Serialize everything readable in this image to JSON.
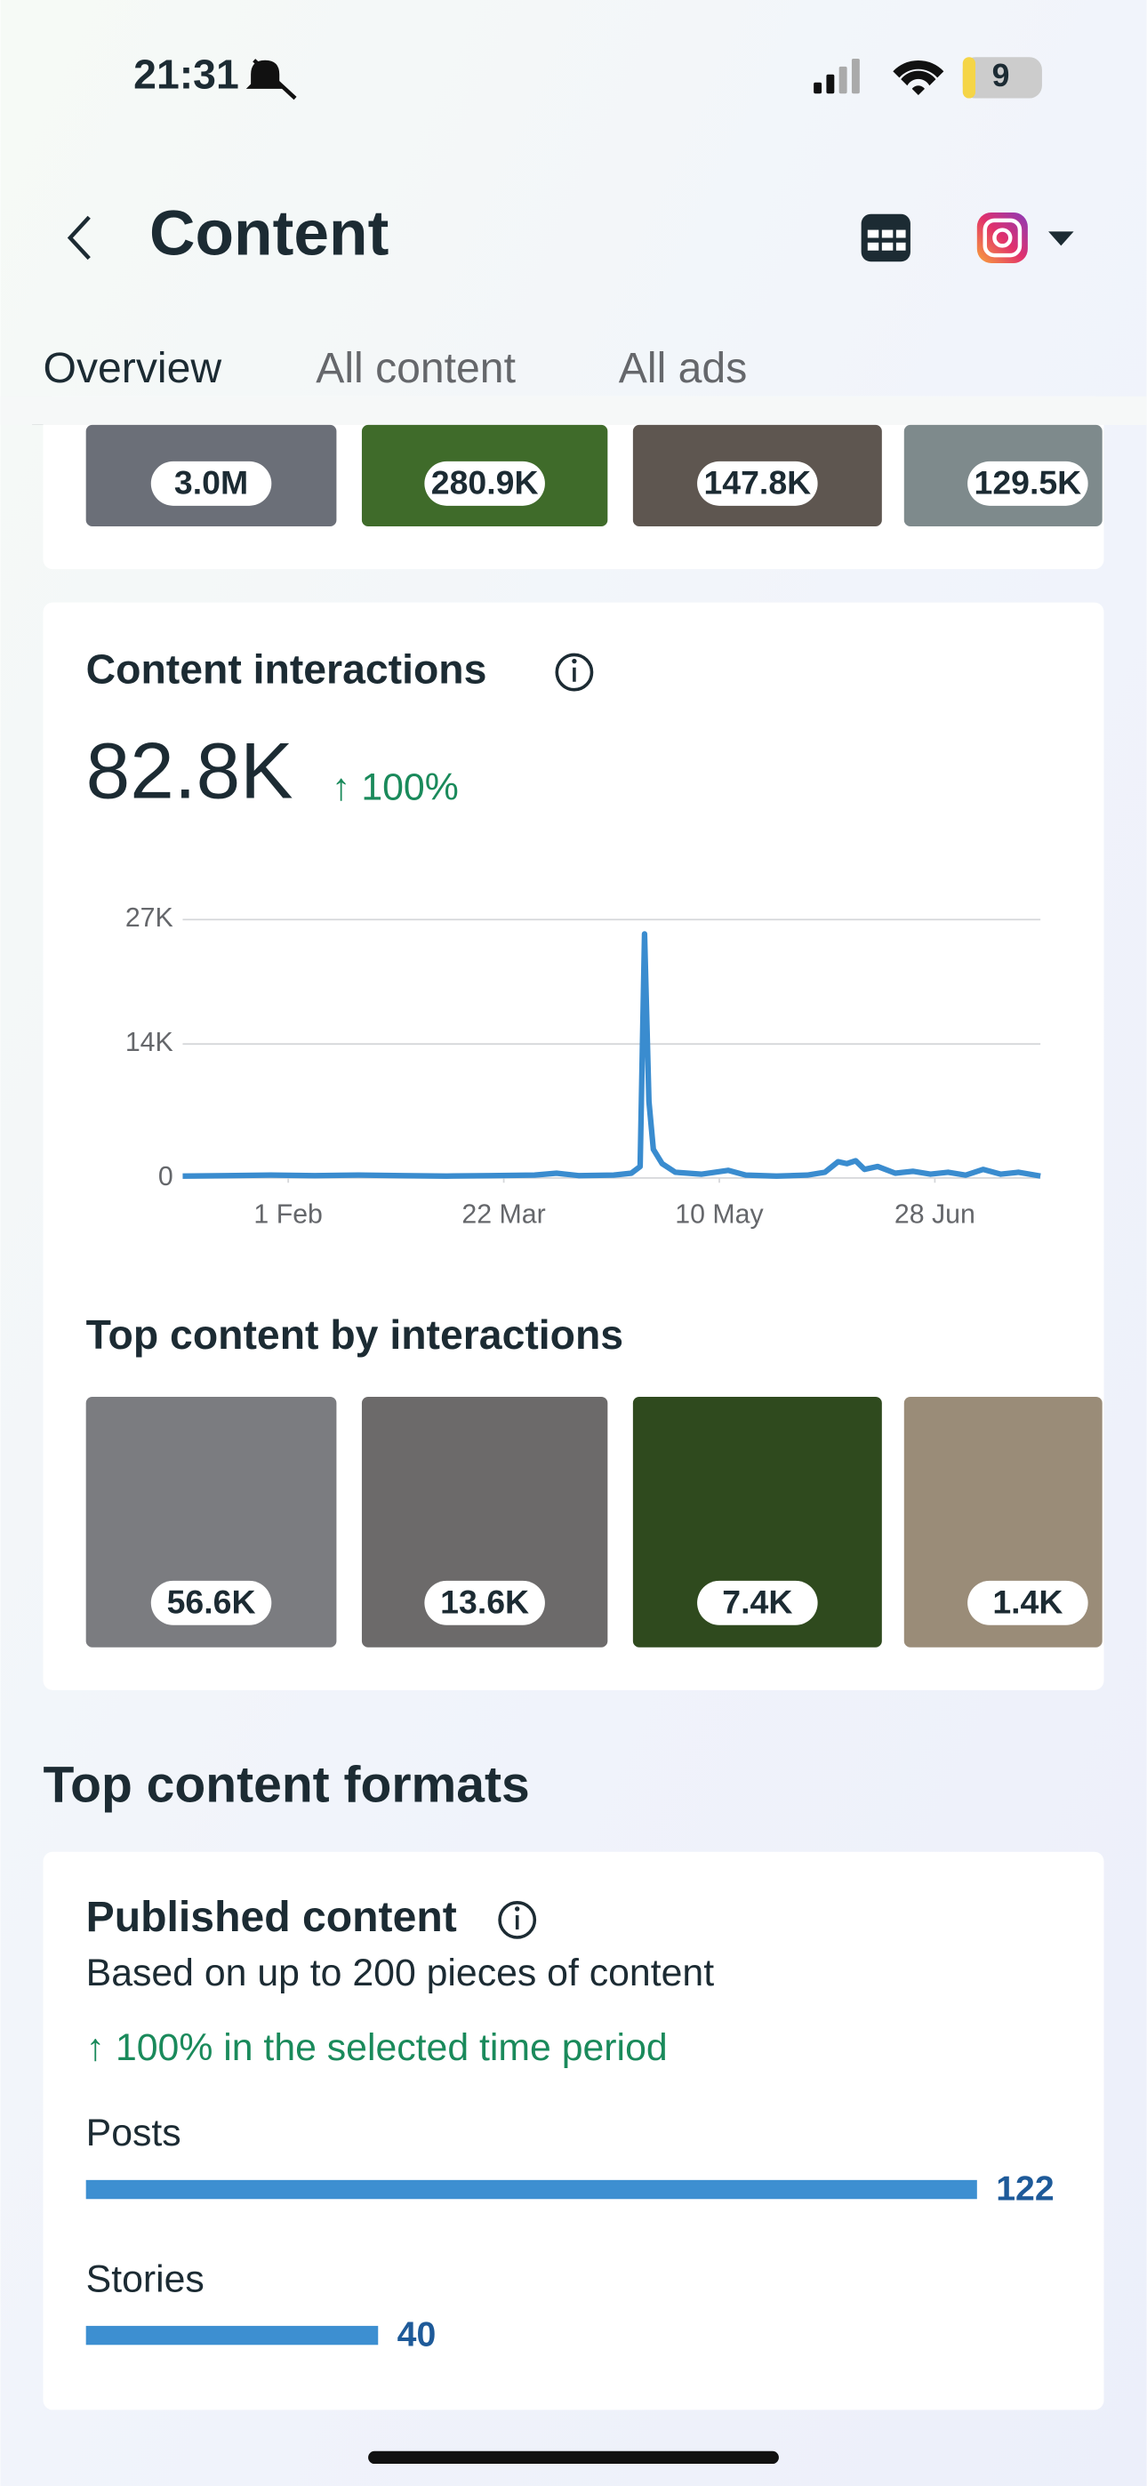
{
  "status_bar": {
    "time": "21:31",
    "battery": "9"
  },
  "header": {
    "title": "Content"
  },
  "tabs": [
    "Overview",
    "All content",
    "All ads"
  ],
  "top_thumbnails": [
    "3.0M",
    "280.9K",
    "147.8K",
    "129.5K"
  ],
  "interactions_card": {
    "title": "Content interactions",
    "total": "82.8K",
    "change": "↑ 100%",
    "chart": {
      "type": "line",
      "x": [
        0,
        10,
        20,
        30,
        40,
        50,
        60,
        70,
        80,
        85,
        90,
        98,
        102,
        104,
        105,
        106,
        107,
        109,
        112,
        118,
        124,
        128,
        135,
        142,
        146,
        149,
        151,
        153,
        155,
        158,
        162,
        166,
        170,
        174,
        178,
        182,
        186,
        190,
        195
      ],
      "values": [
        200,
        250,
        300,
        250,
        300,
        250,
        200,
        250,
        300,
        500,
        250,
        300,
        500,
        1200,
        25500,
        8000,
        3000,
        1500,
        600,
        400,
        800,
        300,
        200,
        300,
        600,
        1700,
        1500,
        1800,
        900,
        1200,
        500,
        700,
        400,
        600,
        300,
        900,
        400,
        600,
        200
      ],
      "color": "#3a8ccf",
      "xlim": [
        0,
        195
      ],
      "xticks": [
        {
          "value": 24,
          "label": "1 Feb"
        },
        {
          "value": 73,
          "label": "22 Mar"
        },
        {
          "value": 122,
          "label": "10 May"
        },
        {
          "value": 171,
          "label": "28 Jun"
        }
      ],
      "ylim": [
        0,
        27000
      ],
      "yticks": [
        0,
        {
          "value": 14000,
          "label": "14K"
        },
        {
          "value": 27000,
          "label": "27K"
        }
      ],
      "grid": true
    },
    "top_title": "Top content by interactions",
    "top_thumbnails": [
      "56.6K",
      "13.6K",
      "7.4K",
      "1.4K"
    ]
  },
  "formats_section": {
    "title": "Top content formats"
  },
  "published_card": {
    "title": "Published content",
    "subtitle": "Based on up to 200 pieces of content",
    "change": "↑ 100% in the selected time period",
    "chart": {
      "type": "bar",
      "categories": [
        "Posts",
        "Stories"
      ],
      "values": [
        122,
        40
      ],
      "color": "#3d8fd1"
    }
  }
}
